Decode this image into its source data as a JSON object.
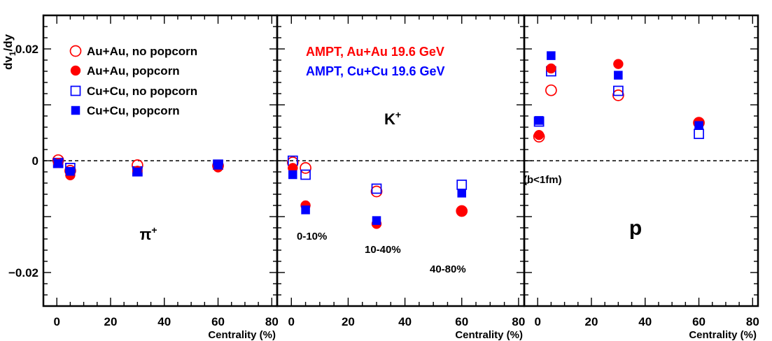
{
  "chart_data": {
    "type": "scatter",
    "ylabel": "dv1/dy",
    "ylabel_main": "dv",
    "ylabel_sub": "1",
    "ylabel_tail": "/dy",
    "ylim": [
      -0.026,
      0.026
    ],
    "yticks": [
      {
        "value": 0.02,
        "label": "0.02"
      },
      {
        "value": 0,
        "label": "0"
      },
      {
        "value": -0.02,
        "label": "−0.02"
      }
    ],
    "xlim": [
      -5,
      82
    ],
    "xticks": [
      {
        "value": 0,
        "label": "0"
      },
      {
        "value": 20,
        "label": "20"
      },
      {
        "value": 40,
        "label": "40"
      },
      {
        "value": 60,
        "label": "60"
      },
      {
        "value": 80,
        "label": "80"
      }
    ],
    "xlabel": "Centrality (%)",
    "colors": {
      "auau": "#ff0000",
      "cucu": "#0000ff"
    },
    "legend": [
      {
        "label": "Au+Au, no popcorn",
        "marker": "open-circle",
        "color": "#ff0000"
      },
      {
        "label": "Au+Au, popcorn",
        "marker": "filled-circle",
        "color": "#ff0000"
      },
      {
        "label": "Cu+Cu, no popcorn",
        "marker": "open-square",
        "color": "#0000ff"
      },
      {
        "label": "Cu+Cu, popcorn",
        "marker": "filled-square",
        "color": "#0000ff"
      }
    ],
    "titles": [
      {
        "text": "AMPT, Au+Au 19.6 GeV",
        "color": "#ff0000"
      },
      {
        "text": "AMPT, Cu+Cu 19.6 GeV",
        "color": "#0000ff"
      }
    ],
    "panels": [
      {
        "particle": "π",
        "particle_sup": "+",
        "annotations": [],
        "series": [
          {
            "name": "Au+Au, no popcorn",
            "x": [
              0.5,
              5,
              30,
              60
            ],
            "y": [
              0.0001,
              -0.0018,
              -0.0008,
              -0.0009
            ]
          },
          {
            "name": "Au+Au, popcorn",
            "x": [
              0.5,
              5,
              30,
              60
            ],
            "y": [
              -0.0004,
              -0.0026,
              -0.0018,
              -0.0012
            ]
          },
          {
            "name": "Cu+Cu, no popcorn",
            "x": [
              0.5,
              5,
              30,
              60
            ],
            "y": [
              -0.0004,
              -0.0013,
              -0.0019,
              -0.0007
            ]
          },
          {
            "name": "Cu+Cu, popcorn",
            "x": [
              0.5,
              5,
              30,
              60
            ],
            "y": [
              -0.0005,
              -0.0019,
              -0.002,
              -0.0008
            ]
          }
        ]
      },
      {
        "particle": "K",
        "particle_sup": "+",
        "annotations": [
          "0-10%",
          "10-40%",
          "40-80%"
        ],
        "series": [
          {
            "name": "Au+Au, no popcorn",
            "x": [
              0.5,
              5,
              30,
              60
            ],
            "y": [
              -0.0003,
              -0.0013,
              -0.0055,
              -0.009
            ]
          },
          {
            "name": "Au+Au, popcorn",
            "x": [
              0.5,
              5,
              30,
              60
            ],
            "y": [
              -0.0013,
              -0.008,
              -0.0113,
              -0.009
            ]
          },
          {
            "name": "Cu+Cu, no popcorn",
            "x": [
              0.5,
              5,
              30,
              60
            ],
            "y": [
              0.0,
              -0.0025,
              -0.005,
              -0.0043
            ]
          },
          {
            "name": "Cu+Cu, popcorn",
            "x": [
              0.5,
              5,
              30,
              60
            ],
            "y": [
              -0.0025,
              -0.0088,
              -0.0107,
              -0.0058
            ]
          }
        ]
      },
      {
        "particle": "p",
        "particle_sup": "",
        "annotations": [
          "(b<1fm)"
        ],
        "series": [
          {
            "name": "Au+Au, no popcorn",
            "x": [
              0.5,
              5,
              30,
              60
            ],
            "y": [
              0.0043,
              0.0126,
              0.0117,
              0.0068
            ]
          },
          {
            "name": "Au+Au, popcorn",
            "x": [
              0.5,
              5,
              30,
              60
            ],
            "y": [
              0.0046,
              0.0165,
              0.0173,
              0.0068
            ]
          },
          {
            "name": "Cu+Cu, no popcorn",
            "x": [
              0.5,
              5,
              30,
              60
            ],
            "y": [
              0.007,
              0.016,
              0.0125,
              0.0048
            ]
          },
          {
            "name": "Cu+Cu, popcorn",
            "x": [
              0.5,
              5,
              30,
              60
            ],
            "y": [
              0.0072,
              0.0188,
              0.0153,
              0.0063
            ]
          }
        ]
      }
    ]
  }
}
